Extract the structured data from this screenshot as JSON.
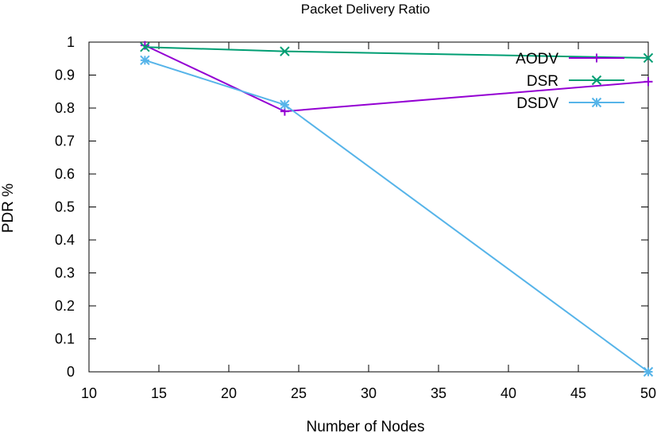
{
  "chart_data": {
    "type": "line",
    "title": "Packet Delivery Ratio",
    "xlabel": "Number of Nodes",
    "ylabel": "PDR %",
    "xlim": [
      10,
      50
    ],
    "ylim": [
      0,
      1
    ],
    "x_ticks": [
      "10",
      "15",
      "20",
      "25",
      "30",
      "35",
      "40",
      "45",
      "50"
    ],
    "y_ticks": [
      "0",
      "0.1",
      "0.2",
      "0.3",
      "0.4",
      "0.5",
      "0.6",
      "0.7",
      "0.8",
      "0.9",
      "1"
    ],
    "grid": false,
    "legend_position": "top-right",
    "series": [
      {
        "name": "AODV",
        "color": "#9400d3",
        "marker": "plus",
        "x": [
          14,
          24,
          50
        ],
        "y": [
          0.99,
          0.79,
          0.88
        ]
      },
      {
        "name": "DSR",
        "color": "#009e73",
        "marker": "cross",
        "x": [
          14,
          24,
          50
        ],
        "y": [
          0.985,
          0.972,
          0.952
        ]
      },
      {
        "name": "DSDV",
        "color": "#56b4e9",
        "marker": "star",
        "x": [
          14,
          24,
          50
        ],
        "y": [
          0.945,
          0.81,
          0.0
        ]
      }
    ]
  }
}
